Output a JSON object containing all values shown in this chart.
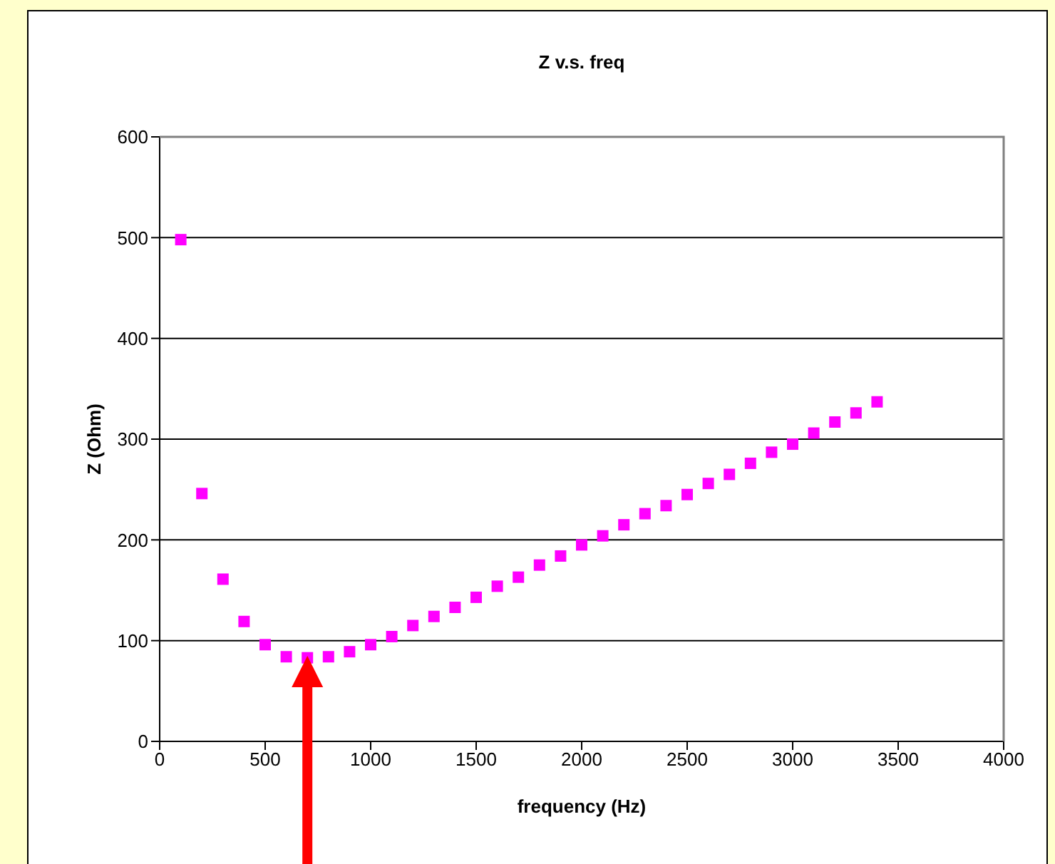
{
  "chart_data": {
    "type": "scatter",
    "title": "Z v.s. freq",
    "xlabel": "frequency (Hz)",
    "ylabel": "Z (Ohm)",
    "x": [
      100,
      200,
      300,
      400,
      500,
      600,
      700,
      800,
      900,
      1000,
      1100,
      1200,
      1300,
      1400,
      1500,
      1600,
      1700,
      1800,
      1900,
      2000,
      2100,
      2200,
      2300,
      2400,
      2500,
      2600,
      2700,
      2800,
      2900,
      3000,
      3100,
      3200,
      3300,
      3400
    ],
    "series": [
      {
        "color": "#ff00ff",
        "values": [
          498,
          246,
          161,
          119,
          96,
          84,
          83,
          84,
          89,
          96,
          104,
          115,
          124,
          133,
          143,
          154,
          163,
          175,
          184,
          195,
          204,
          215,
          226,
          234,
          245,
          256,
          265,
          276,
          287,
          295,
          306,
          317,
          326,
          337
        ]
      }
    ],
    "xlim": [
      0,
      4000
    ],
    "xticks": [
      0,
      500,
      1000,
      1500,
      2000,
      2500,
      3000,
      3500,
      4000
    ],
    "ylim": [
      0,
      600
    ],
    "yticks": [
      0,
      100,
      200,
      300,
      400,
      500,
      600
    ],
    "grid": "y",
    "marker": "square",
    "legend": false
  }
}
